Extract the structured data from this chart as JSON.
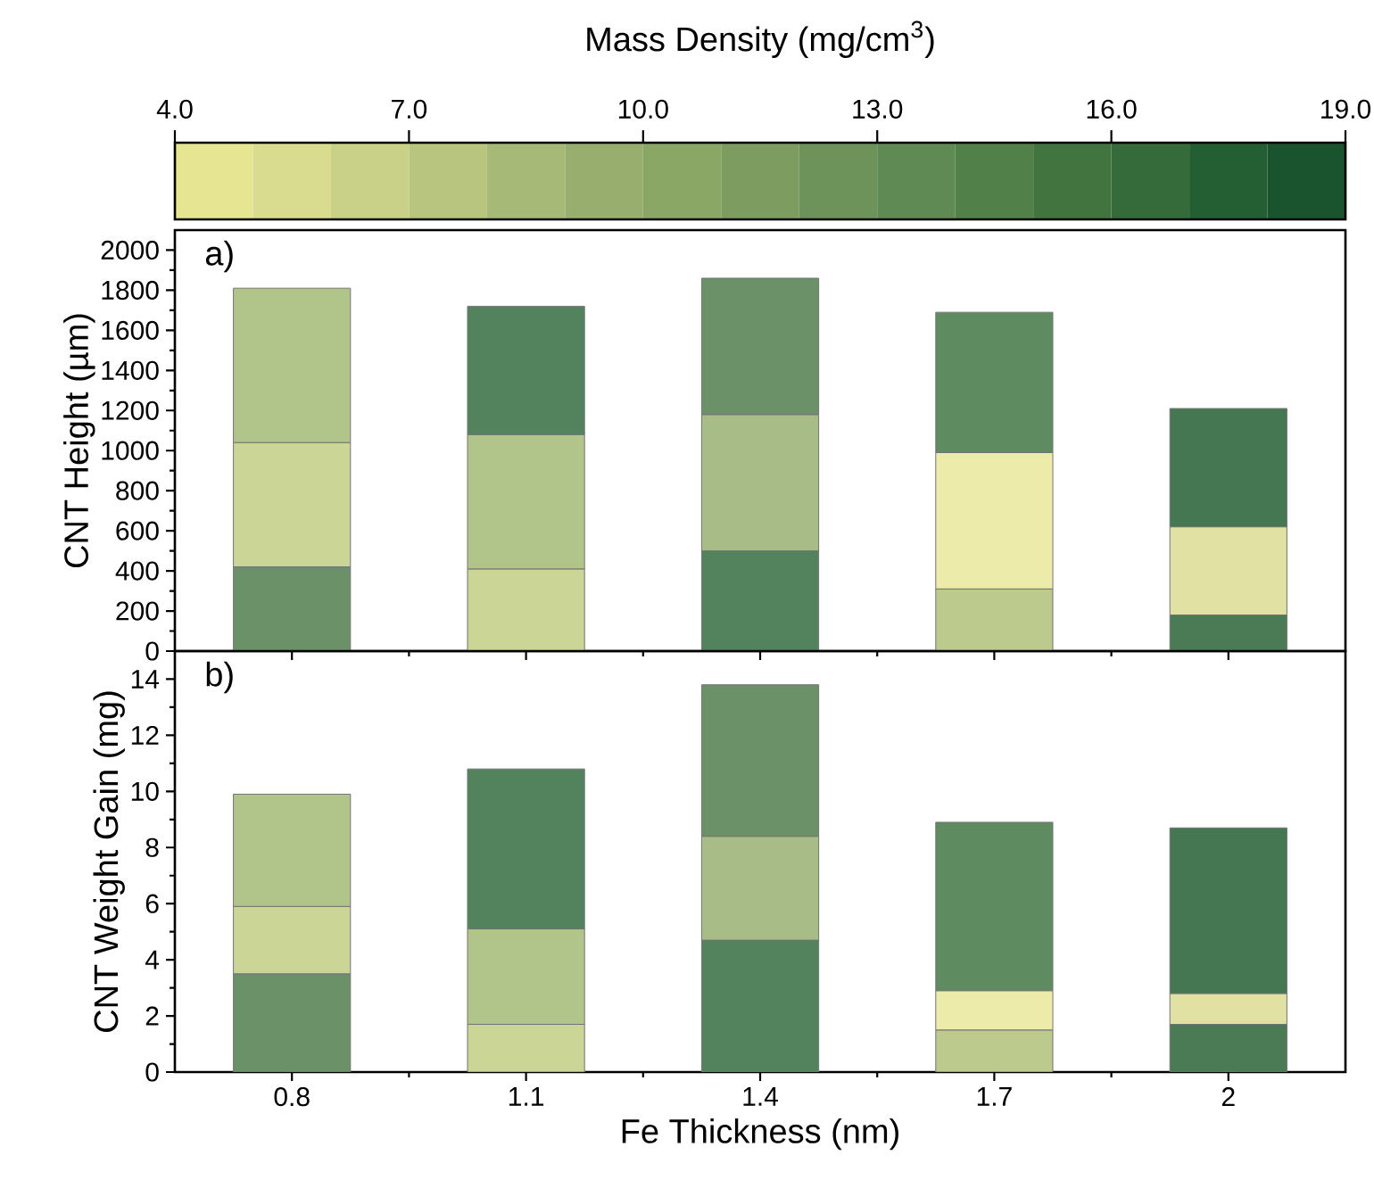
{
  "chart_data": [
    {
      "type": "bar",
      "stacked": true,
      "clabel": "Mass Density (mg/cm$^{3}$)",
      "clim": [
        4,
        19
      ],
      "cticks": [
        {
          "value": 4,
          "label": "4.0"
        },
        {
          "value": 7,
          "label": "7.0"
        },
        {
          "value": 10,
          "label": "10.0"
        },
        {
          "value": 13,
          "label": "13.0"
        },
        {
          "value": 16,
          "label": "16.0"
        },
        {
          "value": 19,
          "label": "19.0"
        }
      ],
      "ylabel": "CNT Height (µm)",
      "annotations": [
        "a)"
      ],
      "tick_labels": "y",
      "categories": [
        "0.8",
        "1.1",
        "1.4",
        "1.7",
        "2"
      ],
      "ylim": [
        0,
        2100
      ],
      "yticks": [
        0,
        200,
        400,
        600,
        800,
        1000,
        1200,
        1400,
        1600,
        1800,
        2000
      ],
      "series": [
        {
          "values": [
            420,
            410,
            500,
            310,
            180
          ],
          "colors": [
            "#6a9168",
            "#cbd595",
            "#53835c",
            "#bcca8e",
            "#4a7b55"
          ]
        },
        {
          "values": [
            620,
            670,
            680,
            680,
            440
          ],
          "colors": [
            "#cbd595",
            "#b1c48a",
            "#a7bc86",
            "#ecebaa",
            "#e0e1a2"
          ]
        },
        {
          "values": [
            770,
            640,
            680,
            700,
            590
          ],
          "colors": [
            "#b1c48a",
            "#53835c",
            "#6a9168",
            "#5f8b60",
            "#457852"
          ]
        }
      ]
    },
    {
      "type": "bar",
      "stacked": true,
      "xlabel": "Fe Thickness (nm)",
      "ylabel": "CNT Weight Gain (mg)",
      "annotations": [
        "b)"
      ],
      "categories": [
        "0.8",
        "1.1",
        "1.4",
        "1.7",
        "2"
      ],
      "ylim": [
        0,
        15
      ],
      "yticks": [
        0,
        2,
        4,
        6,
        8,
        10,
        12,
        14
      ],
      "series": [
        {
          "values": [
            3.5,
            1.7,
            4.7,
            1.5,
            1.7
          ],
          "colors": [
            "#6a9168",
            "#cbd595",
            "#53835c",
            "#bcca8e",
            "#4a7b55"
          ]
        },
        {
          "values": [
            2.4,
            3.4,
            3.7,
            1.4,
            1.1
          ],
          "colors": [
            "#cbd595",
            "#b1c48a",
            "#a7bc86",
            "#ecebaa",
            "#e0e1a2"
          ]
        },
        {
          "values": [
            4.0,
            5.7,
            5.4,
            6.0,
            5.9
          ],
          "colors": [
            "#b1c48a",
            "#53835c",
            "#6a9168",
            "#5f8b60",
            "#457852"
          ]
        }
      ]
    }
  ]
}
